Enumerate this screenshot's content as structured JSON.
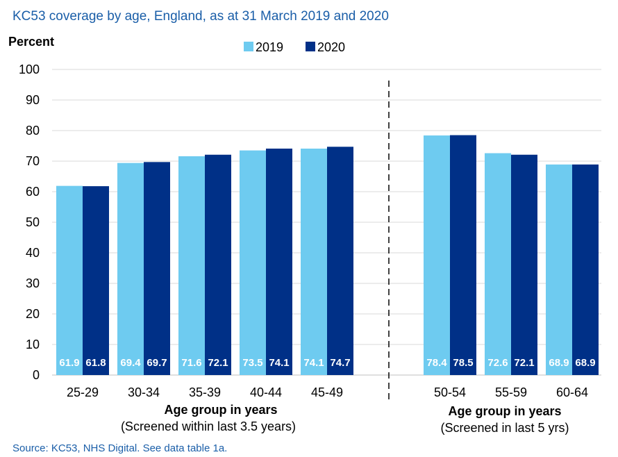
{
  "chart_data": {
    "type": "bar",
    "title": "KC53 coverage by age, England, as at 31 March 2019 and 2020",
    "ylabel": "Percent",
    "ylim": [
      0,
      100
    ],
    "yticks": [
      0,
      10,
      20,
      30,
      40,
      50,
      60,
      70,
      80,
      90,
      100
    ],
    "grid": true,
    "legend_position": "top-center",
    "categories": [
      "25-29",
      "30-34",
      "35-39",
      "40-44",
      "45-49",
      "50-54",
      "55-59",
      "60-64"
    ],
    "series": [
      {
        "name": "2019",
        "color": "#6ecbf0",
        "values": [
          61.9,
          69.4,
          71.6,
          73.5,
          74.1,
          78.4,
          72.6,
          68.9
        ]
      },
      {
        "name": "2020",
        "color": "#003087",
        "values": [
          61.8,
          69.7,
          72.1,
          74.1,
          74.7,
          78.5,
          72.1,
          68.9
        ]
      }
    ],
    "data_labels": {
      "2019": [
        "61.9",
        "69.4",
        "71.6",
        "73.5",
        "74.1",
        "78.4",
        "72.6",
        "68.9"
      ],
      "2020": [
        "61.8",
        "69.7",
        "72.1",
        "74.1",
        "74.7",
        "78.5",
        "72.1",
        "68.9"
      ]
    },
    "groups": [
      {
        "xlabel": "Age group in years",
        "sublabel": "(Screened within last 3.5 years)",
        "categories": [
          "25-29",
          "30-34",
          "35-39",
          "40-44",
          "45-49"
        ]
      },
      {
        "xlabel": "Age group in years",
        "sublabel": "(Screened in last 5 yrs)",
        "categories": [
          "50-54",
          "55-59",
          "60-64"
        ]
      }
    ],
    "divider": "dashed vertical line between 45-49 and 50-54"
  },
  "source": "Source: KC53, NHS Digital. See data table 1a."
}
